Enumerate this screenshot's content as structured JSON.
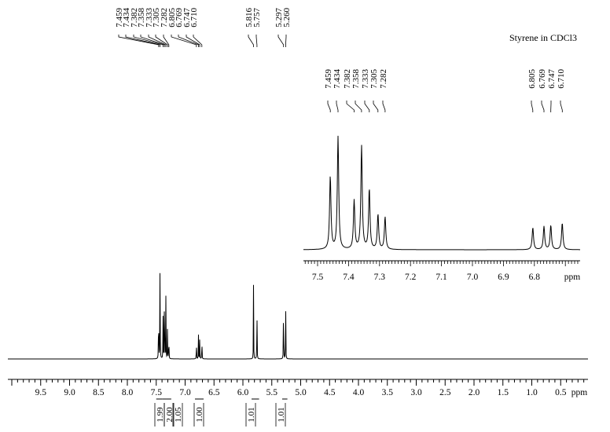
{
  "chart_data": {
    "type": "line",
    "title": "Styrene in CDCl3",
    "xlabel": "ppm",
    "ylabel": "",
    "xlim": [
      10.0,
      0.0
    ],
    "x_reversed": true,
    "grid": false,
    "tick_labels": [
      "9.5",
      "9.0",
      "8.5",
      "8.0",
      "7.5",
      "7.0",
      "6.5",
      "6.0",
      "5.5",
      "5.0",
      "4.5",
      "4.0",
      "3.5",
      "3.0",
      "2.5",
      "2.0",
      "1.5",
      "1.0",
      "0.5"
    ],
    "peak_labels": [
      "7.459",
      "7.434",
      "7.382",
      "7.358",
      "7.333",
      "7.305",
      "7.282",
      "6.805",
      "6.769",
      "6.747",
      "6.710",
      "5.816",
      "5.757",
      "5.297",
      "5.260"
    ],
    "peaks": [
      {
        "ppm": 7.459,
        "height": 0.63
      },
      {
        "ppm": 7.434,
        "height": 0.97
      },
      {
        "ppm": 7.382,
        "height": 0.42
      },
      {
        "ppm": 7.358,
        "height": 0.89
      },
      {
        "ppm": 7.333,
        "height": 0.52
      },
      {
        "ppm": 7.305,
        "height": 0.3
      },
      {
        "ppm": 7.282,
        "height": 0.28
      },
      {
        "ppm": 6.805,
        "height": 0.19
      },
      {
        "ppm": 6.769,
        "height": 0.2
      },
      {
        "ppm": 6.747,
        "height": 0.21
      },
      {
        "ppm": 6.71,
        "height": 0.23
      },
      {
        "ppm": 5.816,
        "height": 0.62
      },
      {
        "ppm": 5.757,
        "height": 0.55
      },
      {
        "ppm": 5.297,
        "height": 0.62
      },
      {
        "ppm": 5.26,
        "height": 0.57
      }
    ],
    "integrals": [
      {
        "from": 7.5,
        "to": 7.4,
        "value": "1.99"
      },
      {
        "from": 7.4,
        "to": 7.32,
        "value": "2.00"
      },
      {
        "from": 7.32,
        "to": 7.24,
        "value": "1.05"
      },
      {
        "from": 6.83,
        "to": 6.68,
        "value": "1.00"
      },
      {
        "from": 5.85,
        "to": 5.72,
        "value": "1.01"
      },
      {
        "from": 5.32,
        "to": 5.23,
        "value": "1.01"
      }
    ],
    "inset": {
      "xlim": [
        7.55,
        6.65
      ],
      "xlabel": "ppm",
      "tick_labels": [
        "7.5",
        "7.4",
        "7.3",
        "7.2",
        "7.1",
        "7.0",
        "6.9",
        "6.8"
      ],
      "peak_labels": [
        "7.459",
        "7.434",
        "7.382",
        "7.358",
        "7.333",
        "7.305",
        "7.282",
        "6.805",
        "6.769",
        "6.747",
        "6.710"
      ]
    }
  }
}
